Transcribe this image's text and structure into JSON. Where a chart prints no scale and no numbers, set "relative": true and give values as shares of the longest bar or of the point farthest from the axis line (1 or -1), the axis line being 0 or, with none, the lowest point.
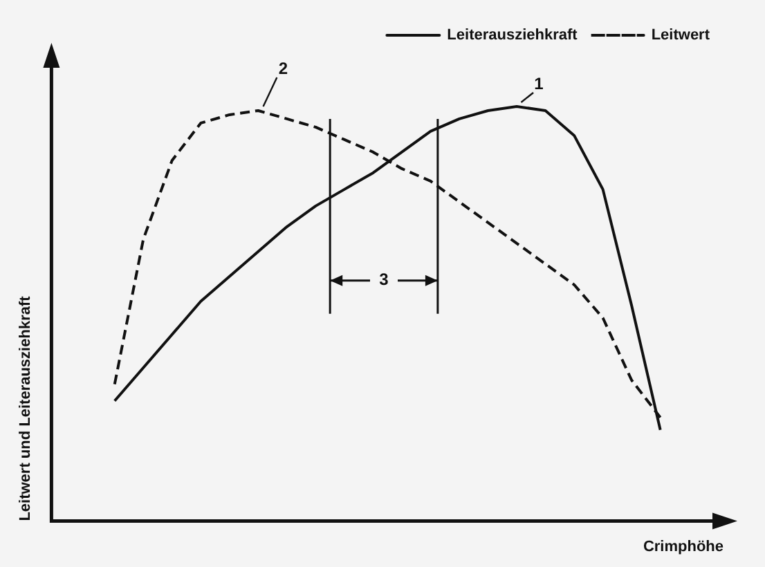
{
  "chart_data": {
    "type": "line",
    "relative": true,
    "xlabel": "Crimphöhe",
    "ylabel": "Leitwert und Leiterausziehkraft",
    "categories": [
      null,
      null,
      null,
      null,
      null,
      null,
      null,
      null,
      null,
      null,
      null,
      null,
      null,
      null,
      null,
      null,
      null,
      null,
      null,
      null
    ],
    "series": [
      {
        "name": "Leiterausziehkraft",
        "color": "#111111",
        "line_style": "solid",
        "values": [
          0.29,
          0.37,
          0.45,
          0.53,
          0.59,
          0.65,
          0.71,
          0.76,
          0.8,
          0.84,
          0.89,
          0.94,
          0.97,
          0.99,
          1.0,
          0.99,
          0.93,
          0.8,
          0.52,
          0.22
        ]
      },
      {
        "name": "Leitwert",
        "color": "#111111",
        "line_style": "dashed",
        "values": [
          0.33,
          0.68,
          0.87,
          0.96,
          0.98,
          0.99,
          0.97,
          0.95,
          0.92,
          0.89,
          0.85,
          0.82,
          0.77,
          0.72,
          0.67,
          0.62,
          0.57,
          0.49,
          0.34,
          0.25
        ]
      }
    ],
    "annotations": [
      "1",
      "2",
      "3"
    ],
    "legend": "top right",
    "grid": false,
    "marker": "none"
  }
}
